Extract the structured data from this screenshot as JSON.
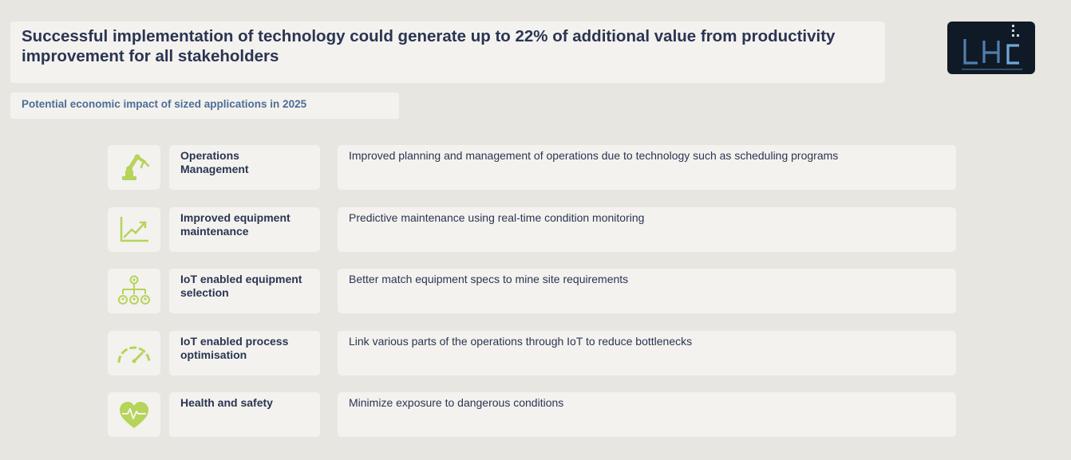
{
  "header": {
    "title": "Successful implementation of technology could generate up to 22% of additional value from productivity improvement for all stakeholders",
    "subtitle": "Potential economic impact of sized applications in 2025"
  },
  "logo": {
    "icon": "lhc-logo-icon"
  },
  "colors": {
    "icon_green": "#b5d45a",
    "title_navy": "#2b3553",
    "subtitle_blue": "#4e6d98",
    "box_bg": "#f3f2ee",
    "page_bg": "#e8e6e1"
  },
  "rows": [
    {
      "icon": "robot-arm-icon",
      "label": "Operations Management",
      "description": "Improved planning and management of operations due to technology such as scheduling programs"
    },
    {
      "icon": "trend-chart-icon",
      "label": "Improved equipment maintenance",
      "description": "Predictive maintenance using real-time condition monitoring"
    },
    {
      "icon": "org-hierarchy-icon",
      "label": "IoT enabled equipment selection",
      "description": "Better match equipment specs to mine site requirements"
    },
    {
      "icon": "speedometer-icon",
      "label": "IoT enabled process optimisation",
      "description": "Link various parts of the operations through IoT to reduce bottlenecks"
    },
    {
      "icon": "heart-pulse-icon",
      "label": "Health and safety",
      "description": "Minimize exposure to dangerous conditions"
    }
  ]
}
